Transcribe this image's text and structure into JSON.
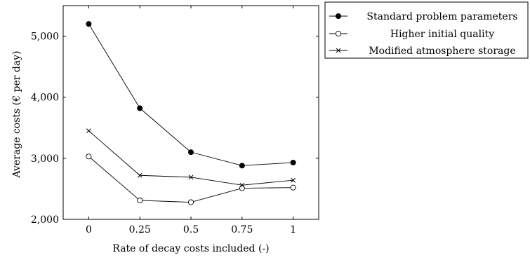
{
  "chart_data": {
    "type": "line",
    "title": "",
    "xlabel": "Rate of decay costs included (-)",
    "ylabel": "Average costs (€ per day)",
    "x": [
      0,
      0.25,
      0.5,
      0.75,
      1
    ],
    "x_tick_labels": [
      "0",
      "0.25",
      "0.5",
      "0.75",
      "1"
    ],
    "xlim": [
      -0.125,
      1.125
    ],
    "ylim": [
      2000,
      5500
    ],
    "y_ticks": [
      2000,
      3000,
      4000,
      5000
    ],
    "y_tick_labels": [
      "2,000",
      "3,000",
      "4,000",
      "5,000"
    ],
    "grid": false,
    "legend_position": "outside-top-right",
    "series": [
      {
        "name": "Standard problem parameters",
        "marker": "filled-circle",
        "color": "#000000",
        "values": [
          5200,
          3820,
          3100,
          2880,
          2930
        ]
      },
      {
        "name": "Higher initial quality",
        "marker": "open-circle",
        "color": "#000000",
        "values": [
          3030,
          2310,
          2280,
          2510,
          2520
        ]
      },
      {
        "name": "Modified atmosphere storage",
        "marker": "cross",
        "color": "#000000",
        "values": [
          3450,
          2720,
          2690,
          2560,
          2640
        ]
      }
    ]
  }
}
